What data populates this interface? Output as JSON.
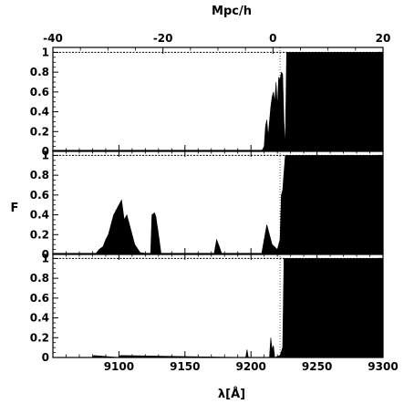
{
  "chart_data": {
    "type": "area",
    "layout": "three vertically stacked panels sharing the x axis",
    "xlabel": "λ[Å]",
    "ylabel": "F",
    "top_xlabel": "Mpc/h",
    "xlim": [
      9050,
      9300
    ],
    "ylim": [
      0,
      1.05
    ],
    "x_ticks": [
      "9100",
      "9150",
      "9200",
      "9250",
      "9300"
    ],
    "y_ticks": [
      "0",
      "0.2",
      "0.4",
      "0.6",
      "0.8",
      "1"
    ],
    "top_axis": {
      "xlim": [
        -40,
        20
      ],
      "ticks": [
        "-40",
        "-20",
        "0",
        "20"
      ]
    },
    "reference_lines": {
      "y": 1.0,
      "x": 9222
    },
    "fill_color": "#000000",
    "panels": [
      {
        "index": 1,
        "series": [
          {
            "x": [
              9050,
              9208,
              9210,
              9211,
              9212,
              9213,
              9214,
              9215,
              9216,
              9217,
              9218,
              9219,
              9220,
              9221,
              9222,
              9223,
              9224,
              9225,
              9226,
              9227,
              9228,
              9229,
              9300
            ],
            "values": [
              0,
              0,
              0.05,
              0.25,
              0.32,
              0.15,
              0.3,
              0.45,
              0.55,
              0.6,
              0.5,
              0.7,
              0.45,
              0.75,
              0.72,
              0.8,
              0.78,
              0.3,
              0.05,
              1.0,
              1.0,
              1.0,
              1.0
            ]
          }
        ]
      },
      {
        "index": 2,
        "series": [
          {
            "x": [
              9050,
              9082,
              9085,
              9088,
              9090,
              9092,
              9094,
              9096,
              9098,
              9100,
              9102,
              9104,
              9106,
              9108,
              9110,
              9112,
              9116,
              9124,
              9125,
              9127,
              9128,
              9130,
              9132,
              9172,
              9174,
              9176,
              9178,
              9208,
              9210,
              9212,
              9214,
              9216,
              9220,
              9222,
              9223,
              9224,
              9226,
              9228,
              9300
            ],
            "values": [
              0,
              0,
              0.05,
              0.08,
              0.15,
              0.2,
              0.3,
              0.4,
              0.45,
              0.5,
              0.55,
              0.35,
              0.4,
              0.3,
              0.2,
              0.1,
              0.02,
              0,
              0.4,
              0.42,
              0.38,
              0.2,
              0,
              0,
              0.15,
              0.08,
              0,
              0,
              0.15,
              0.3,
              0.2,
              0.1,
              0.05,
              0.15,
              0.6,
              0.65,
              1.0,
              1.0,
              1.0
            ]
          }
        ]
      },
      {
        "index": 3,
        "series": [
          {
            "x": [
              9050,
              9080,
              9081,
              9100,
              9101,
              9196,
              9197,
              9198,
              9214,
              9215,
              9216,
              9217,
              9218,
              9222,
              9224,
              9225,
              9226,
              9300
            ],
            "values": [
              0,
              0,
              0.02,
              0,
              0.02,
              0,
              0.08,
              0,
              0,
              0.2,
              0.08,
              0.12,
              0,
              0.02,
              0.1,
              1.0,
              1.0,
              1.0
            ]
          }
        ]
      }
    ]
  }
}
